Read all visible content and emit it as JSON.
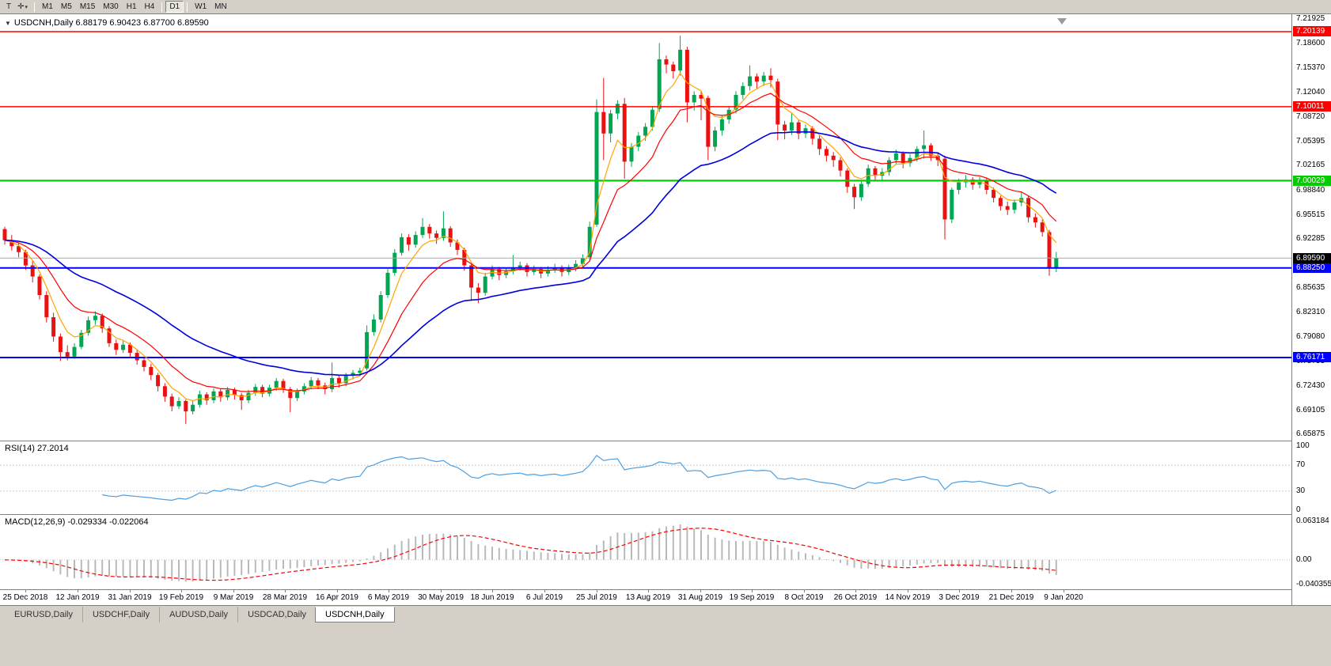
{
  "icons": {
    "collapse_arrow": "▼",
    "dropdown_arrow": "▾"
  },
  "toolbar": {
    "tools": [
      {
        "name": "text-tool",
        "glyph": "T"
      },
      {
        "name": "crosshair-tool",
        "glyph": "✛"
      }
    ],
    "timeframes": [
      "M1",
      "M5",
      "M15",
      "M30",
      "H1",
      "H4",
      "D1",
      "W1",
      "MN"
    ],
    "active_timeframe": "D1"
  },
  "chart": {
    "title": "USDCNH,Daily",
    "open": "6.88179",
    "high": "6.90423",
    "low": "6.87700",
    "close": "6.89590"
  },
  "tabs": {
    "items": [
      "EURUSD,Daily",
      "USDCHF,Daily",
      "AUDUSD,Daily",
      "USDCAD,Daily",
      "USDCNH,Daily"
    ],
    "active": "USDCNH,Daily"
  },
  "chart_data": {
    "type": "candlestick",
    "symbol": "USDCNH",
    "timeframe": "Daily",
    "colors": {
      "up": "#00A651",
      "down": "#E81212",
      "ma_fast": "#FFA500",
      "ma_mid": "#FF0000",
      "ma_slow": "#0000E0",
      "current_line": "#A9A9A9",
      "current_label_bg": "#000000",
      "rsi_line": "#4F9FE0",
      "macd_bar": "#B9B9B9",
      "macd_signal": "#FF0000",
      "grid_dash": "#C8C8C8"
    },
    "y_axis": {
      "range": [
        6.6507,
        7.2206
      ],
      "ticks": [
        "7.21925",
        "7.18600",
        "7.15370",
        "7.12040",
        "7.08720",
        "7.05395",
        "7.02165",
        "6.98840",
        "6.95515",
        "6.92285",
        "6.85635",
        "6.82310",
        "6.79080",
        "6.75755",
        "6.72430",
        "6.69105",
        "6.65875"
      ]
    },
    "x_labels": [
      "25 Dec 2018",
      "12 Jan 2019",
      "31 Jan 2019",
      "19 Feb 2019",
      "9 Mar 2019",
      "28 Mar 2019",
      "16 Apr 2019",
      "6 May 2019",
      "30 May 2019",
      "18 Jun 2019",
      "6 Jul 2019",
      "25 Jul 2019",
      "13 Aug 2019",
      "31 Aug 2019",
      "19 Sep 2019",
      "8 Oct 2019",
      "26 Oct 2019",
      "14 Nov 2019",
      "3 Dec 2019",
      "21 Dec 2019",
      "9 Jan 2020"
    ],
    "hlines": [
      {
        "value": 7.20139,
        "label": "7.20139",
        "color": "#FF0000",
        "width": 1.5
      },
      {
        "value": 7.10011,
        "label": "7.10011",
        "color": "#FF0000",
        "width": 1.5
      },
      {
        "value": 7.00029,
        "label": "7.00029",
        "color": "#00CC00",
        "width": 2.2
      },
      {
        "value": 6.8825,
        "label": "6.88250",
        "color": "#0000FF",
        "width": 2
      },
      {
        "value": 6.76171,
        "label": "6.76171",
        "color": "#0000FF",
        "width": 2
      }
    ],
    "current_price": {
      "value": 6.8959,
      "label": "6.89590"
    },
    "moving_averages": [
      {
        "name": "fast",
        "period": 5,
        "color": "#FFA500",
        "width": 1.2
      },
      {
        "name": "medium",
        "period": 12,
        "color": "#FF0000",
        "width": 1.2
      },
      {
        "name": "slow",
        "period": 32,
        "color": "#0000E0",
        "width": 1.6
      }
    ],
    "rsi": {
      "label": "RSI(14)",
      "value_text": "27.2014",
      "period": 14,
      "levels": [
        100,
        70,
        30,
        0
      ]
    },
    "macd": {
      "label": "MACD(12,26,9)",
      "value_text": "-0.029334 -0.022064",
      "fast": 12,
      "slow": 26,
      "signal": 9,
      "scale_top": 0.063184,
      "scale_bottom": -0.040355,
      "scale_top_text": "0.063184",
      "scale_zero_text": "0.00",
      "scale_bottom_text": "-0.040355"
    },
    "candles": [
      [
        6.935,
        6.938,
        6.914,
        6.92
      ],
      [
        6.92,
        6.927,
        6.906,
        6.912
      ],
      [
        6.912,
        6.917,
        6.897,
        6.904
      ],
      [
        6.904,
        6.907,
        6.88,
        6.886
      ],
      [
        6.886,
        6.893,
        6.863,
        6.871
      ],
      [
        6.871,
        6.874,
        6.84,
        6.846
      ],
      [
        6.846,
        6.851,
        6.809,
        6.816
      ],
      [
        6.816,
        6.822,
        6.783,
        6.79
      ],
      [
        6.79,
        6.794,
        6.757,
        6.769
      ],
      [
        6.769,
        6.778,
        6.758,
        6.763
      ],
      [
        6.763,
        6.781,
        6.76,
        6.776
      ],
      [
        6.776,
        6.799,
        6.773,
        6.795
      ],
      [
        6.795,
        6.817,
        6.791,
        6.812
      ],
      [
        6.812,
        6.824,
        6.806,
        6.818
      ],
      [
        6.818,
        6.821,
        6.795,
        6.801
      ],
      [
        6.801,
        6.804,
        6.776,
        6.781
      ],
      [
        6.781,
        6.786,
        6.765,
        6.772
      ],
      [
        6.772,
        6.784,
        6.768,
        6.779
      ],
      [
        6.779,
        6.782,
        6.762,
        6.768
      ],
      [
        6.768,
        6.773,
        6.752,
        6.758
      ],
      [
        6.758,
        6.762,
        6.743,
        6.749
      ],
      [
        6.749,
        6.753,
        6.731,
        6.738
      ],
      [
        6.738,
        6.741,
        6.716,
        6.723
      ],
      [
        6.723,
        6.727,
        6.702,
        6.709
      ],
      [
        6.709,
        6.713,
        6.689,
        6.696
      ],
      [
        6.696,
        6.708,
        6.692,
        6.703
      ],
      [
        6.703,
        6.705,
        6.672,
        6.689
      ],
      [
        6.689,
        6.703,
        6.685,
        6.698
      ],
      [
        6.698,
        6.717,
        6.694,
        6.712
      ],
      [
        6.712,
        6.715,
        6.698,
        6.704
      ],
      [
        6.704,
        6.72,
        6.7,
        6.716
      ],
      [
        6.716,
        6.719,
        6.702,
        6.708
      ],
      [
        6.708,
        6.722,
        6.704,
        6.718
      ],
      [
        6.718,
        6.721,
        6.705,
        6.711
      ],
      [
        6.711,
        6.714,
        6.691,
        6.704
      ],
      [
        6.704,
        6.718,
        6.7,
        6.714
      ],
      [
        6.714,
        6.726,
        6.71,
        6.722
      ],
      [
        6.722,
        6.725,
        6.708,
        6.713
      ],
      [
        6.713,
        6.725,
        6.709,
        6.721
      ],
      [
        6.721,
        6.734,
        6.717,
        6.73
      ],
      [
        6.73,
        6.733,
        6.714,
        6.719
      ],
      [
        6.719,
        6.722,
        6.688,
        6.707
      ],
      [
        6.707,
        6.72,
        6.703,
        6.716
      ],
      [
        6.716,
        6.727,
        6.712,
        6.723
      ],
      [
        6.723,
        6.735,
        6.719,
        6.731
      ],
      [
        6.731,
        6.734,
        6.719,
        6.724
      ],
      [
        6.724,
        6.728,
        6.712,
        6.719
      ],
      [
        6.719,
        6.755,
        6.715,
        6.734
      ],
      [
        6.734,
        6.737,
        6.721,
        6.727
      ],
      [
        6.727,
        6.741,
        6.723,
        6.737
      ],
      [
        6.737,
        6.745,
        6.732,
        6.741
      ],
      [
        6.741,
        6.748,
        6.736,
        6.744
      ],
      [
        6.747,
        6.805,
        6.744,
        6.796
      ],
      [
        6.796,
        6.82,
        6.791,
        6.813
      ],
      [
        6.813,
        6.851,
        6.809,
        6.846
      ],
      [
        6.846,
        6.881,
        6.842,
        6.876
      ],
      [
        6.876,
        6.908,
        6.872,
        6.903
      ],
      [
        6.903,
        6.929,
        6.899,
        6.924
      ],
      [
        6.924,
        6.928,
        6.906,
        6.914
      ],
      [
        6.914,
        6.932,
        6.91,
        6.927
      ],
      [
        6.927,
        6.95,
        6.923,
        6.938
      ],
      [
        6.938,
        6.942,
        6.922,
        6.929
      ],
      [
        6.929,
        6.933,
        6.915,
        6.923
      ],
      [
        6.923,
        6.959,
        6.919,
        6.936
      ],
      [
        6.936,
        6.939,
        6.911,
        6.917
      ],
      [
        6.917,
        6.921,
        6.9,
        6.907
      ],
      [
        6.907,
        6.91,
        6.879,
        6.886
      ],
      [
        6.886,
        6.889,
        6.838,
        6.856
      ],
      [
        6.856,
        6.862,
        6.835,
        6.849
      ],
      [
        6.849,
        6.876,
        6.845,
        6.871
      ],
      [
        6.871,
        6.886,
        6.867,
        6.881
      ],
      [
        6.881,
        6.884,
        6.866,
        6.873
      ],
      [
        6.873,
        6.883,
        6.869,
        6.878
      ],
      [
        6.878,
        6.9,
        6.874,
        6.883
      ],
      [
        6.883,
        6.891,
        6.879,
        6.886
      ],
      [
        6.886,
        6.889,
        6.871,
        6.877
      ],
      [
        6.877,
        6.886,
        6.873,
        6.881
      ],
      [
        6.881,
        6.884,
        6.869,
        6.875
      ],
      [
        6.875,
        6.885,
        6.871,
        6.88
      ],
      [
        6.88,
        6.888,
        6.876,
        6.883
      ],
      [
        6.883,
        6.886,
        6.871,
        6.877
      ],
      [
        6.877,
        6.887,
        6.873,
        6.882
      ],
      [
        6.882,
        6.893,
        6.878,
        6.888
      ],
      [
        6.888,
        6.901,
        6.884,
        6.896
      ],
      [
        6.897,
        6.945,
        6.893,
        6.938
      ],
      [
        6.941,
        7.11,
        6.938,
        7.093
      ],
      [
        7.093,
        7.139,
        7.028,
        7.064
      ],
      [
        7.064,
        7.096,
        7.052,
        7.091
      ],
      [
        7.091,
        7.109,
        7.083,
        7.104
      ],
      [
        7.104,
        7.112,
        7.003,
        7.026
      ],
      [
        7.026,
        7.051,
        7.019,
        7.046
      ],
      [
        7.046,
        7.066,
        7.04,
        7.061
      ],
      [
        7.061,
        7.078,
        7.054,
        7.073
      ],
      [
        7.073,
        7.101,
        7.068,
        7.096
      ],
      [
        7.097,
        7.186,
        7.093,
        7.164
      ],
      [
        7.164,
        7.169,
        7.145,
        7.157
      ],
      [
        7.157,
        7.161,
        7.138,
        7.148
      ],
      [
        7.149,
        7.196,
        7.142,
        7.177
      ],
      [
        7.177,
        7.181,
        7.079,
        7.106
      ],
      [
        7.106,
        7.121,
        7.095,
        7.116
      ],
      [
        7.116,
        7.12,
        7.082,
        7.111
      ],
      [
        7.112,
        7.115,
        7.028,
        7.046
      ],
      [
        7.046,
        7.073,
        7.04,
        7.068
      ],
      [
        7.068,
        7.088,
        7.061,
        7.083
      ],
      [
        7.083,
        7.101,
        7.077,
        7.096
      ],
      [
        7.096,
        7.121,
        7.091,
        7.116
      ],
      [
        7.116,
        7.133,
        7.11,
        7.128
      ],
      [
        7.128,
        7.156,
        7.122,
        7.141
      ],
      [
        7.141,
        7.145,
        7.125,
        7.134
      ],
      [
        7.134,
        7.147,
        7.128,
        7.142
      ],
      [
        7.142,
        7.152,
        7.126,
        7.136
      ],
      [
        7.134,
        7.138,
        7.055,
        7.076
      ],
      [
        7.076,
        7.081,
        7.056,
        7.068
      ],
      [
        7.068,
        7.091,
        7.062,
        7.079
      ],
      [
        7.079,
        7.082,
        7.056,
        7.064
      ],
      [
        7.064,
        7.076,
        7.058,
        7.071
      ],
      [
        7.071,
        7.074,
        7.049,
        7.057
      ],
      [
        7.057,
        7.061,
        7.035,
        7.043
      ],
      [
        7.043,
        7.047,
        7.026,
        7.034
      ],
      [
        7.034,
        7.039,
        7.019,
        7.028
      ],
      [
        7.028,
        7.032,
        7.006,
        7.014
      ],
      [
        7.014,
        7.017,
        6.984,
        6.992
      ],
      [
        6.992,
        6.996,
        6.962,
        6.978
      ],
      [
        6.978,
        7.0,
        6.973,
        6.996
      ],
      [
        6.996,
        7.022,
        6.992,
        7.017
      ],
      [
        7.017,
        7.02,
        7.0,
        7.007
      ],
      [
        7.007,
        7.017,
        7.001,
        7.012
      ],
      [
        7.012,
        7.032,
        7.007,
        7.028
      ],
      [
        7.028,
        7.042,
        7.022,
        7.037
      ],
      [
        7.037,
        7.04,
        7.017,
        7.024
      ],
      [
        7.024,
        7.036,
        7.019,
        7.031
      ],
      [
        7.031,
        7.047,
        7.026,
        7.043
      ],
      [
        7.043,
        7.068,
        7.03,
        7.048
      ],
      [
        7.048,
        7.051,
        7.027,
        7.034
      ],
      [
        7.034,
        7.038,
        7.02,
        7.028
      ],
      [
        7.03,
        7.034,
        6.921,
        6.948
      ],
      [
        6.948,
        6.991,
        6.943,
        6.988
      ],
      [
        6.988,
        7.003,
        6.982,
        6.998
      ],
      [
        6.998,
        7.008,
        6.991,
        7.002
      ],
      [
        7.002,
        7.005,
        6.988,
        6.995
      ],
      [
        6.995,
        7.005,
        6.99,
        7.001
      ],
      [
        7.001,
        7.004,
        6.982,
        6.988
      ],
      [
        6.988,
        6.991,
        6.971,
        6.977
      ],
      [
        6.977,
        6.98,
        6.96,
        6.966
      ],
      [
        6.966,
        6.972,
        6.954,
        6.961
      ],
      [
        6.961,
        6.975,
        6.956,
        6.971
      ],
      [
        6.971,
        6.985,
        6.966,
        6.977
      ],
      [
        6.977,
        6.98,
        6.944,
        6.951
      ],
      [
        6.951,
        6.956,
        6.937,
        6.944
      ],
      [
        6.944,
        6.948,
        6.925,
        6.931
      ],
      [
        6.931,
        6.934,
        6.872,
        6.882
      ],
      [
        6.8818,
        6.9042,
        6.877,
        6.8959
      ]
    ]
  }
}
